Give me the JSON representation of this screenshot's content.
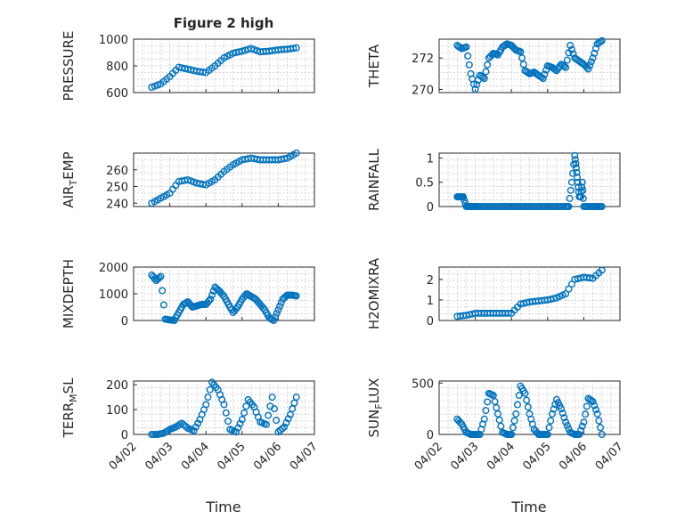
{
  "figure": {
    "title": "Figure 2 high",
    "xlabel": "Time",
    "date_ticks": [
      "04/02",
      "04/03",
      "04/04",
      "04/05",
      "04/06",
      "04/07"
    ]
  },
  "colors": {
    "marker": "#0072BD",
    "axes": "#262626",
    "grid": "#b8b8b8"
  },
  "chart_data": [
    {
      "type": "scatter",
      "ylabel": "PRESSURE",
      "ylim": [
        600,
        1000
      ],
      "yticks": [
        600,
        800,
        1000
      ],
      "grid": true,
      "x": [
        "04/02 12:00",
        "04/02 18:00",
        "04/03 00:00",
        "04/03 06:00",
        "04/03 12:00",
        "04/03 18:00",
        "04/04 00:00",
        "04/04 06:00",
        "04/04 12:00",
        "04/04 18:00",
        "04/05 00:00",
        "04/05 06:00",
        "04/05 12:00",
        "04/05 18:00",
        "04/06 00:00",
        "04/06 06:00",
        "04/06 12:00"
      ],
      "y": [
        640,
        665,
        720,
        790,
        775,
        760,
        750,
        800,
        860,
        895,
        910,
        930,
        905,
        910,
        920,
        925,
        935
      ]
    },
    {
      "type": "scatter",
      "ylabel": "THETA",
      "ylim": [
        269.8,
        273.2
      ],
      "yticks": [
        270,
        272
      ],
      "grid": true,
      "x": [
        "04/02 12:00",
        "04/02 15:00",
        "04/02 18:00",
        "04/02 21:00",
        "04/03 00:00",
        "04/03 03:00",
        "04/03 06:00",
        "04/03 09:00",
        "04/03 12:00",
        "04/03 15:00",
        "04/03 18:00",
        "04/03 21:00",
        "04/04 00:00",
        "04/04 03:00",
        "04/04 06:00",
        "04/04 09:00",
        "04/04 12:00",
        "04/04 15:00",
        "04/04 18:00",
        "04/04 21:00",
        "04/05 00:00",
        "04/05 03:00",
        "04/05 06:00",
        "04/05 09:00",
        "04/05 12:00",
        "04/05 15:00",
        "04/05 18:00",
        "04/05 21:00",
        "04/06 00:00",
        "04/06 03:00",
        "04/06 06:00",
        "04/06 09:00",
        "04/06 12:00"
      ],
      "y": [
        272.8,
        272.6,
        272.7,
        271.0,
        270.0,
        270.9,
        270.7,
        272.0,
        272.3,
        272.2,
        272.7,
        272.9,
        272.8,
        272.5,
        272.4,
        271.2,
        271.0,
        271.1,
        270.9,
        270.7,
        271.5,
        271.4,
        271.2,
        271.6,
        271.4,
        272.8,
        272.0,
        271.8,
        271.6,
        271.3,
        272.0,
        272.9,
        273.1
      ]
    },
    {
      "type": "scatter",
      "ylabel": "AIR_TEMP",
      "ylim": [
        238,
        270
      ],
      "yticks": [
        240,
        250,
        260
      ],
      "grid": true,
      "x": [
        "04/02 12:00",
        "04/02 18:00",
        "04/03 00:00",
        "04/03 06:00",
        "04/03 12:00",
        "04/03 18:00",
        "04/04 00:00",
        "04/04 06:00",
        "04/04 12:00",
        "04/04 18:00",
        "04/05 00:00",
        "04/05 06:00",
        "04/05 12:00",
        "04/05 18:00",
        "04/06 00:00",
        "04/06 06:00",
        "04/06 12:00"
      ],
      "y": [
        240,
        243,
        246,
        253,
        254,
        252,
        251,
        254,
        259,
        263,
        266,
        267,
        266,
        266,
        266,
        267,
        270
      ]
    },
    {
      "type": "scatter",
      "ylabel": "RAINFALL",
      "ylim": [
        0,
        1.1
      ],
      "yticks": [
        0,
        0.5,
        1
      ],
      "ticklabels": [
        "0",
        "0.5",
        "1"
      ],
      "grid": true,
      "x": [
        "04/02 12:00",
        "04/02 14:00",
        "04/02 16:00",
        "04/02 18:00",
        "04/02 20:00",
        "04/02 22:00",
        "04/03 00:00",
        "04/03 04:00",
        "04/03 08:00",
        "04/03 12:00",
        "04/03 16:00",
        "04/03 20:00",
        "04/04 00:00",
        "04/04 04:00",
        "04/04 08:00",
        "04/04 12:00",
        "04/04 16:00",
        "04/04 20:00",
        "04/05 00:00",
        "04/05 04:00",
        "04/05 08:00",
        "04/05 12:00",
        "04/05 14:00",
        "04/05 16:00",
        "04/05 18:00",
        "04/05 19:00",
        "04/05 20:00",
        "04/05 21:00",
        "04/05 22:00",
        "04/05 23:00",
        "04/06 00:00",
        "04/06 03:00",
        "04/06 06:00",
        "04/06 09:00",
        "04/06 12:00"
      ],
      "y": [
        0.2,
        0.2,
        0.2,
        0,
        0,
        0,
        0,
        0,
        0,
        0,
        0,
        0,
        0,
        0,
        0,
        0,
        0,
        0,
        0,
        0,
        0,
        0,
        0,
        0.5,
        1.05,
        0.8,
        0.5,
        0.2,
        0.2,
        0.5,
        0,
        0,
        0,
        0,
        0
      ]
    },
    {
      "type": "scatter",
      "ylabel": "MIXDEPTH",
      "ylim": [
        0,
        2000
      ],
      "yticks": [
        0,
        1000,
        2000
      ],
      "grid": true,
      "x": [
        "04/02 12:00",
        "04/02 15:00",
        "04/02 18:00",
        "04/02 21:00",
        "04/03 00:00",
        "04/03 03:00",
        "04/03 06:00",
        "04/03 09:00",
        "04/03 12:00",
        "04/03 15:00",
        "04/03 18:00",
        "04/03 21:00",
        "04/04 00:00",
        "04/04 03:00",
        "04/04 06:00",
        "04/04 09:00",
        "04/04 12:00",
        "04/04 15:00",
        "04/04 18:00",
        "04/04 21:00",
        "04/05 00:00",
        "04/05 03:00",
        "04/05 06:00",
        "04/05 09:00",
        "04/05 12:00",
        "04/05 15:00",
        "04/05 18:00",
        "04/05 21:00",
        "04/06 00:00",
        "04/06 03:00",
        "04/06 06:00",
        "04/06 09:00",
        "04/06 12:00"
      ],
      "y": [
        1700,
        1500,
        1650,
        50,
        20,
        0,
        300,
        600,
        700,
        500,
        550,
        600,
        600,
        800,
        1250,
        1100,
        900,
        600,
        300,
        500,
        800,
        1000,
        900,
        800,
        600,
        400,
        100,
        0,
        400,
        800,
        950,
        950,
        920
      ]
    },
    {
      "type": "scatter",
      "ylabel": "H2OMIXRA",
      "ylim": [
        0,
        2.6
      ],
      "yticks": [
        0,
        1,
        2
      ],
      "grid": true,
      "x": [
        "04/02 12:00",
        "04/02 18:00",
        "04/03 00:00",
        "04/03 06:00",
        "04/03 12:00",
        "04/03 18:00",
        "04/04 00:00",
        "04/04 06:00",
        "04/04 12:00",
        "04/04 18:00",
        "04/05 00:00",
        "04/05 06:00",
        "04/05 12:00",
        "04/05 18:00",
        "04/06 00:00",
        "04/06 06:00",
        "04/06 12:00"
      ],
      "y": [
        0.2,
        0.25,
        0.35,
        0.35,
        0.35,
        0.35,
        0.35,
        0.8,
        0.9,
        0.95,
        1.0,
        1.1,
        1.3,
        2.0,
        2.1,
        2.05,
        2.45
      ]
    },
    {
      "type": "scatter",
      "ylabel": "TERR_MSL",
      "ylim": [
        0,
        215
      ],
      "yticks": [
        0,
        100,
        200
      ],
      "grid": true,
      "x": [
        "04/02 12:00",
        "04/02 16:00",
        "04/02 20:00",
        "04/03 00:00",
        "04/03 04:00",
        "04/03 08:00",
        "04/03 12:00",
        "04/03 16:00",
        "04/03 20:00",
        "04/04 00:00",
        "04/04 04:00",
        "04/04 08:00",
        "04/04 12:00",
        "04/04 16:00",
        "04/04 20:00",
        "04/05 00:00",
        "04/05 04:00",
        "04/05 08:00",
        "04/05 12:00",
        "04/05 16:00",
        "04/05 20:00",
        "04/06 00:00",
        "04/06 04:00",
        "04/06 08:00",
        "04/06 12:00"
      ],
      "y": [
        0,
        0,
        5,
        20,
        30,
        45,
        25,
        15,
        60,
        120,
        210,
        180,
        120,
        20,
        10,
        60,
        140,
        110,
        50,
        40,
        150,
        10,
        30,
        80,
        150
      ]
    },
    {
      "type": "scatter",
      "ylabel": "SUN_FLUX",
      "ylim": [
        0,
        520
      ],
      "yticks": [
        0,
        500
      ],
      "grid": true,
      "x": [
        "04/02 12:00",
        "04/02 15:00",
        "04/02 18:00",
        "04/02 21:00",
        "04/03 00:00",
        "04/03 03:00",
        "04/03 06:00",
        "04/03 09:00",
        "04/03 12:00",
        "04/03 15:00",
        "04/03 18:00",
        "04/03 21:00",
        "04/04 00:00",
        "04/04 03:00",
        "04/04 06:00",
        "04/04 09:00",
        "04/04 12:00",
        "04/04 15:00",
        "04/04 18:00",
        "04/04 21:00",
        "04/05 00:00",
        "04/05 03:00",
        "04/05 06:00",
        "04/05 09:00",
        "04/05 12:00",
        "04/05 15:00",
        "04/05 18:00",
        "04/05 21:00",
        "04/06 00:00",
        "04/06 03:00",
        "04/06 06:00",
        "04/06 09:00",
        "04/06 12:00"
      ],
      "y": [
        150,
        100,
        20,
        0,
        0,
        0,
        150,
        400,
        380,
        200,
        20,
        0,
        0,
        200,
        470,
        400,
        200,
        50,
        0,
        0,
        0,
        200,
        340,
        250,
        120,
        20,
        0,
        0,
        120,
        350,
        320,
        200,
        0
      ]
    }
  ]
}
